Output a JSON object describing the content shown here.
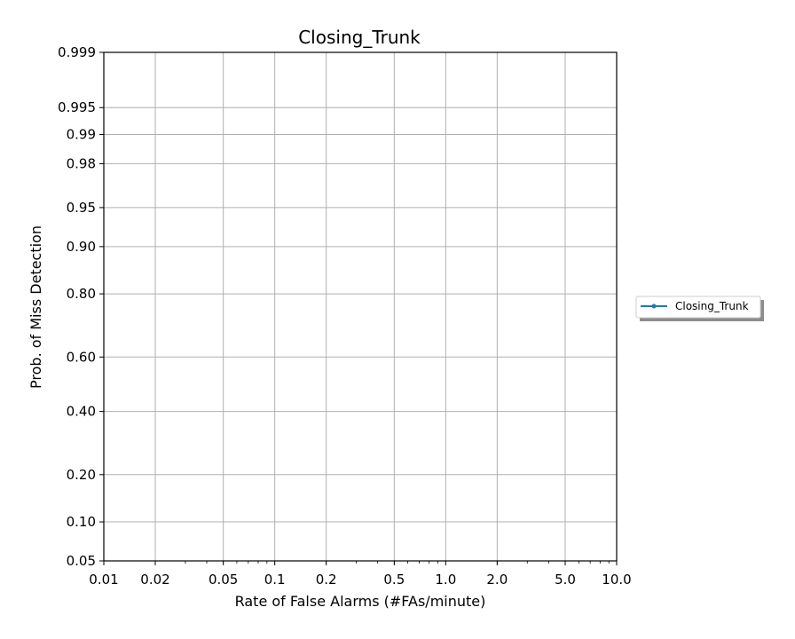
{
  "chart_data": {
    "type": "line",
    "title": "Closing_Trunk",
    "xlabel": "Rate of False Alarms (#FAs/minute)",
    "ylabel": "Prob. of Miss Detection",
    "x_scale": "log",
    "y_scale": "probit",
    "xlim": [
      0.01,
      10.0
    ],
    "ylim": [
      0.05,
      0.999
    ],
    "x_ticks": [
      {
        "value": 0.01,
        "label": "0.01"
      },
      {
        "value": 0.02,
        "label": "0.02"
      },
      {
        "value": 0.05,
        "label": "0.05"
      },
      {
        "value": 0.1,
        "label": "0.1"
      },
      {
        "value": 0.2,
        "label": "0.2"
      },
      {
        "value": 0.5,
        "label": "0.5"
      },
      {
        "value": 1.0,
        "label": "1.0"
      },
      {
        "value": 2.0,
        "label": "2.0"
      },
      {
        "value": 5.0,
        "label": "5.0"
      },
      {
        "value": 10.0,
        "label": "10.0"
      }
    ],
    "y_ticks": [
      {
        "value": 0.05,
        "label": "0.05"
      },
      {
        "value": 0.1,
        "label": "0.10"
      },
      {
        "value": 0.2,
        "label": "0.20"
      },
      {
        "value": 0.4,
        "label": "0.40"
      },
      {
        "value": 0.6,
        "label": "0.60"
      },
      {
        "value": 0.8,
        "label": "0.80"
      },
      {
        "value": 0.9,
        "label": "0.90"
      },
      {
        "value": 0.95,
        "label": "0.95"
      },
      {
        "value": 0.98,
        "label": "0.98"
      },
      {
        "value": 0.99,
        "label": "0.99"
      },
      {
        "value": 0.995,
        "label": "0.995"
      },
      {
        "value": 0.999,
        "label": "0.999"
      }
    ],
    "grid": true,
    "legend_position": "outside-right",
    "series": [
      {
        "name": "Closing_Trunk",
        "color": "#1f77b4",
        "marker": "dot",
        "x": [],
        "y": []
      }
    ]
  }
}
